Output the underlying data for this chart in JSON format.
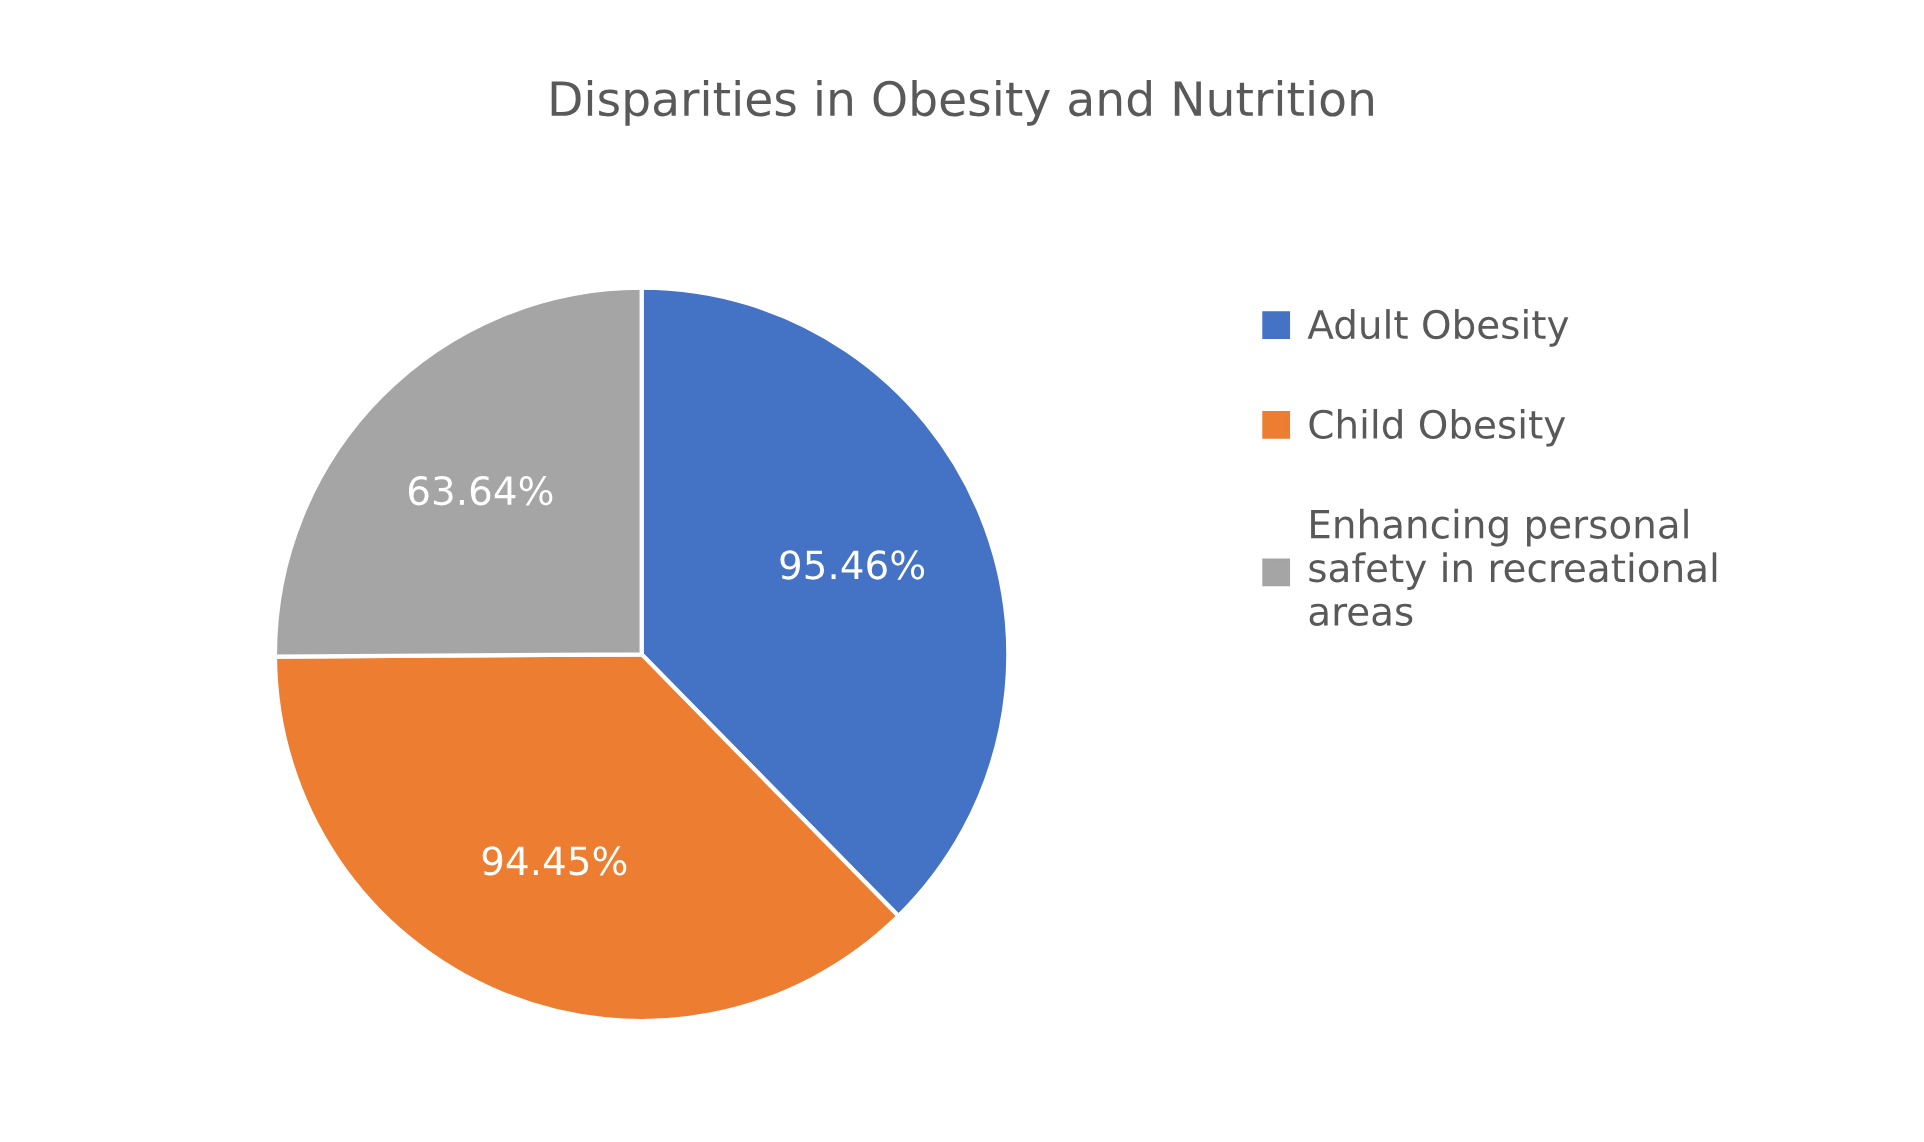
{
  "chart_data": {
    "type": "pie",
    "title": "Disparities in Obesity and Nutrition",
    "categories": [
      "Adult Obesity",
      "Child Obesity",
      "Enhancing personal safety in recreational areas"
    ],
    "values": [
      95.46,
      94.45,
      63.64
    ],
    "value_labels": [
      "95.46%",
      "94.45%",
      "63.64%"
    ],
    "colors": [
      "#4472c4",
      "#ed7d31",
      "#a5a5a5"
    ],
    "legend": "right"
  }
}
